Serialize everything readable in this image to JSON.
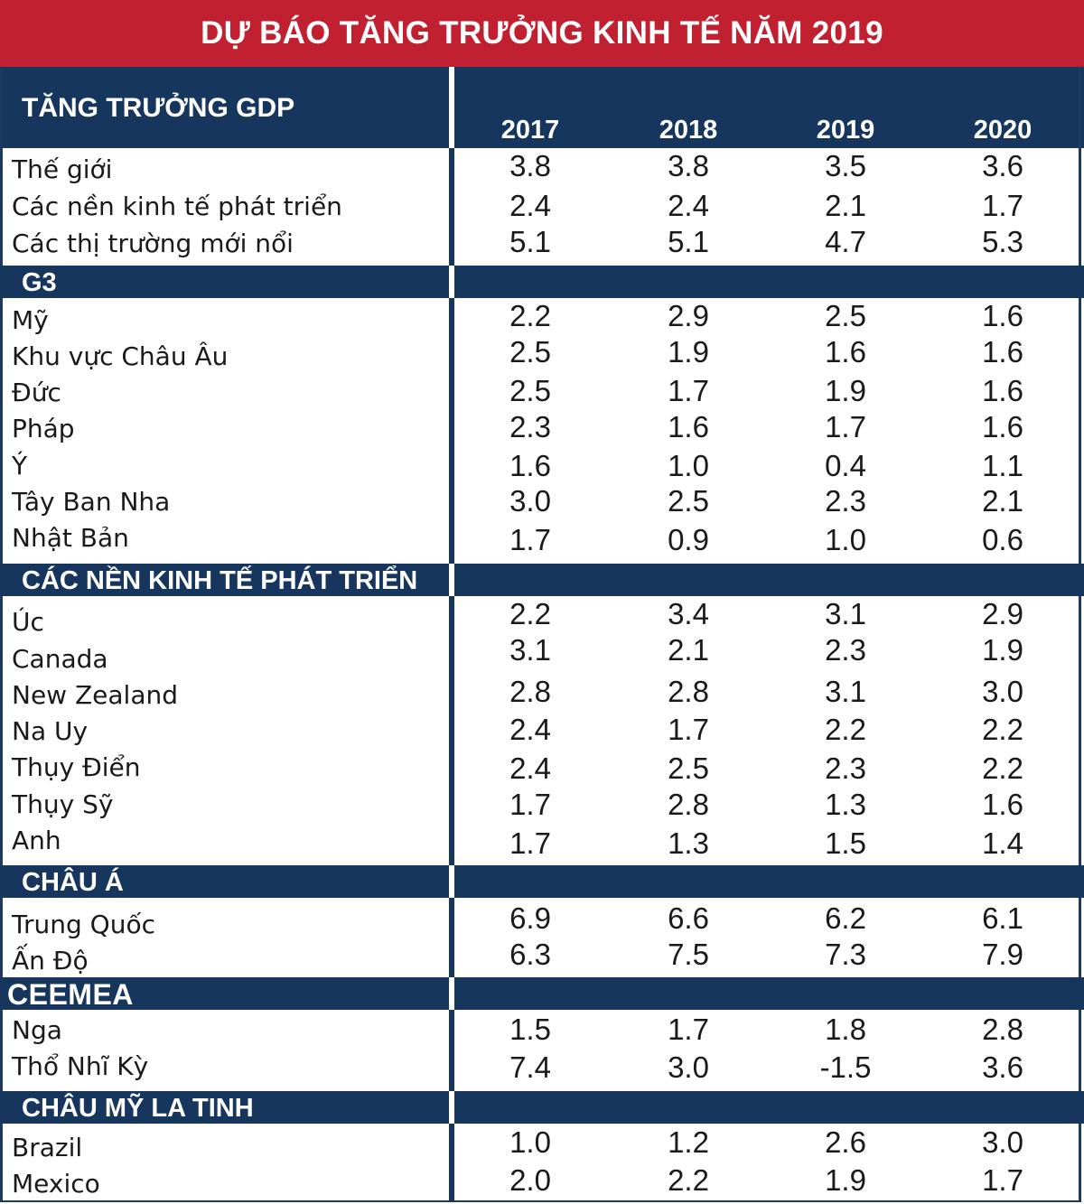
{
  "title": "DỰ BÁO TĂNG TRƯỞNG KINH TẾ NĂM 2019",
  "header_label": "TĂNG TRƯỞNG GDP",
  "years": [
    "2017",
    "2018",
    "2019",
    "2020"
  ],
  "colors": {
    "title_bg": "#c0202f",
    "header_bg": "#17365d",
    "text": "#1a1a1a"
  },
  "chart_data": {
    "type": "table",
    "title": "DỰ BÁO TĂNG TRƯỞNG KINH TẾ NĂM 2019",
    "columns": [
      "2017",
      "2018",
      "2019",
      "2020"
    ],
    "groups": [
      {
        "name": "",
        "rows": [
          {
            "label": "Thế giới",
            "values": [
              "3.8",
              "3.8",
              "3.5",
              "3.6"
            ]
          },
          {
            "label": "Các nền kinh tế phát triển",
            "values": [
              "2.4",
              "2.4",
              "2.1",
              "1.7"
            ]
          },
          {
            "label": "Các thị trường mới nổi",
            "values": [
              "5.1",
              "5.1",
              "4.7",
              "5.3"
            ]
          }
        ]
      },
      {
        "name": "G3",
        "rows": [
          {
            "label": "Mỹ",
            "values": [
              "2.2",
              "2.9",
              "2.5",
              "1.6"
            ]
          },
          {
            "label": "Khu vực Châu Âu",
            "values": [
              "2.5",
              "1.9",
              "1.6",
              "1.6"
            ]
          },
          {
            "label": "Đức",
            "values": [
              "2.5",
              "1.7",
              "1.9",
              "1.6"
            ]
          },
          {
            "label": "Pháp",
            "values": [
              "2.3",
              "1.6",
              "1.7",
              "1.6"
            ]
          },
          {
            "label": "Ý",
            "values": [
              "1.6",
              "1.0",
              "0.4",
              "1.1"
            ]
          },
          {
            "label": "Tây Ban Nha",
            "values": [
              "3.0",
              "2.5",
              "2.3",
              "2.1"
            ]
          },
          {
            "label": "Nhật Bản",
            "values": [
              "1.7",
              "0.9",
              "1.0",
              "0.6"
            ]
          }
        ]
      },
      {
        "name": "CÁC NỀN KINH TẾ PHÁT TRIỂN",
        "rows": [
          {
            "label": "Úc",
            "values": [
              "2.2",
              "3.4",
              "3.1",
              "2.9"
            ]
          },
          {
            "label": "Canada",
            "values": [
              "3.1",
              "2.1",
              "2.3",
              "1.9"
            ]
          },
          {
            "label": "New Zealand",
            "values": [
              "2.8",
              "2.8",
              "3.1",
              "3.0"
            ]
          },
          {
            "label": "Na Uy",
            "values": [
              "2.4",
              "1.7",
              "2.2",
              "2.2"
            ]
          },
          {
            "label": "Thụy Điển",
            "values": [
              "2.4",
              "2.5",
              "2.3",
              "2.2"
            ]
          },
          {
            "label": "Thụy Sỹ",
            "values": [
              "1.7",
              "2.8",
              "1.3",
              "1.6"
            ]
          },
          {
            "label": "Anh",
            "values": [
              "1.7",
              "1.3",
              "1.5",
              "1.4"
            ]
          }
        ]
      },
      {
        "name": "CHÂU Á",
        "rows": [
          {
            "label": "Trung Quốc",
            "values": [
              "6.9",
              "6.6",
              "6.2",
              "6.1"
            ]
          },
          {
            "label": "Ấn Độ",
            "values": [
              "6.3",
              "7.5",
              "7.3",
              "7.9"
            ]
          }
        ]
      },
      {
        "name": "CEEMEA",
        "rows": [
          {
            "label": "Nga",
            "values": [
              "1.5",
              "1.7",
              "1.8",
              "2.8"
            ]
          },
          {
            "label": "Thổ Nhĩ Kỳ",
            "values": [
              "7.4",
              "3.0",
              "-1.5",
              "3.6"
            ]
          }
        ]
      },
      {
        "name": "CHÂU MỸ LA TINH",
        "rows": [
          {
            "label": "Brazil",
            "values": [
              "1.0",
              "1.2",
              "2.6",
              "3.0"
            ]
          },
          {
            "label": "Mexico",
            "values": [
              "2.0",
              "2.2",
              "1.9",
              "1.7"
            ]
          }
        ]
      }
    ]
  }
}
